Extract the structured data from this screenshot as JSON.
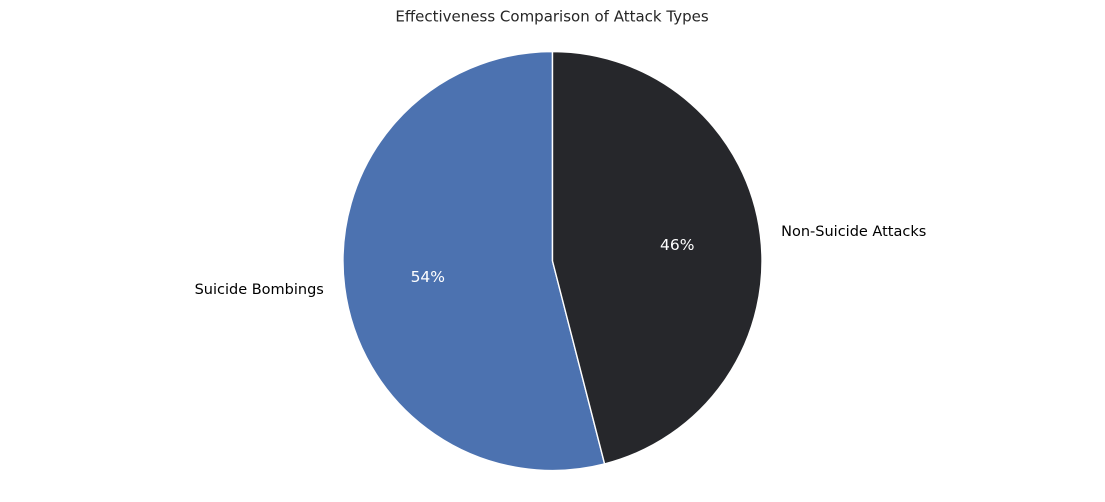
{
  "chart_data": {
    "type": "pie",
    "title": "Effectiveness Comparison of Attack Types",
    "labels": [
      "Suicide Bombings",
      "Non-Suicide Attacks"
    ],
    "values": [
      54,
      46
    ],
    "percent_labels": [
      "54%",
      "46%"
    ],
    "colors": [
      "#4c72b0",
      "#26272b"
    ],
    "start_angle_deg": 90,
    "direction": "counterclockwise",
    "edge_color": "#ffffff",
    "legend": "none"
  }
}
